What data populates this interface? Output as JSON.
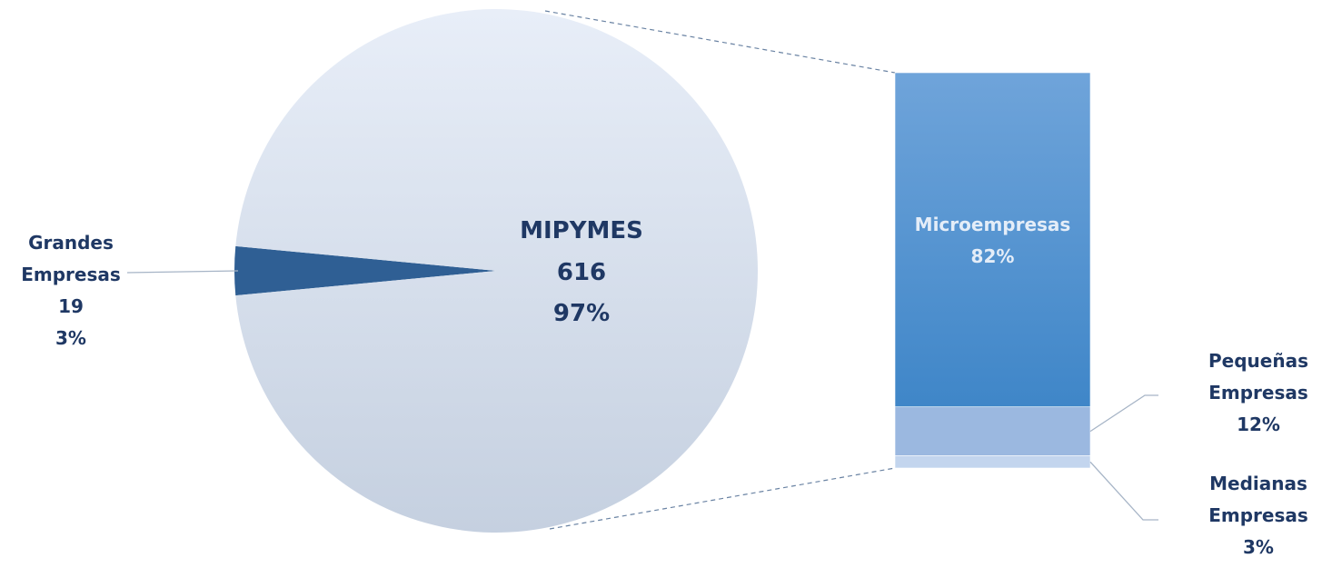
{
  "chart_data": [
    {
      "type": "pie",
      "categories": [
        "MIPYMES",
        "Grandes Empresas"
      ],
      "values": [
        97,
        3
      ],
      "value_labels": [
        "97%",
        "3%"
      ],
      "counts": [
        616,
        19
      ],
      "colors": [
        "#dbe4f1",
        "#2f5f94"
      ]
    },
    {
      "type": "bar",
      "categories": [
        "Microempresas",
        "Pequeñas Empresas",
        "Medianas Empresas"
      ],
      "values": [
        82,
        12,
        3
      ],
      "value_labels": [
        "82%",
        "12%",
        "3%"
      ],
      "colors": [
        "#4a8fd0",
        "#9bb8e0",
        "#c3d5ee"
      ]
    }
  ]
}
